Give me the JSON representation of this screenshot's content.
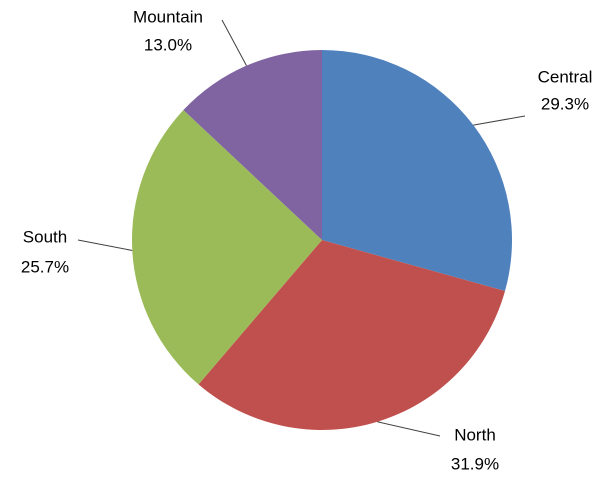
{
  "chart_data": {
    "type": "pie",
    "categories": [
      "Central",
      "North",
      "South",
      "Mountain"
    ],
    "values": [
      29.3,
      31.9,
      25.7,
      13.0
    ],
    "value_labels": [
      "29.3%",
      "31.9%",
      "25.7%",
      "13.0%"
    ],
    "colors": [
      "#4f81bd",
      "#c0504d",
      "#9bbb59",
      "#8064a2"
    ]
  }
}
